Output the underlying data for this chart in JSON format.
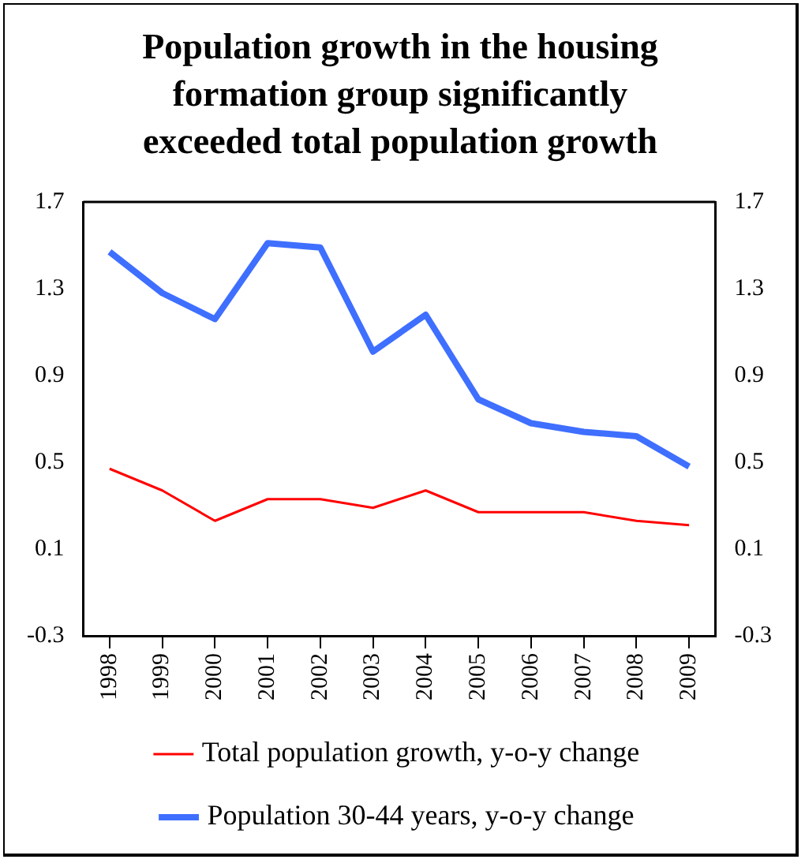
{
  "chart_data": {
    "type": "line",
    "title": "Population growth in the housing formation group significantly exceeded total population growth",
    "categories": [
      "1998",
      "1999",
      "2000",
      "2001",
      "2002",
      "2003",
      "2004",
      "2005",
      "2006",
      "2007",
      "2008",
      "2009"
    ],
    "series": [
      {
        "name": "Total population growth, y-o-y change",
        "color": "#ff0000",
        "values": [
          0.47,
          0.37,
          0.23,
          0.33,
          0.33,
          0.29,
          0.37,
          0.27,
          0.27,
          0.27,
          0.23,
          0.21
        ]
      },
      {
        "name": "Population 30-44 years, y-o-y change",
        "color": "#3f6fff",
        "values": [
          1.47,
          1.28,
          1.16,
          1.51,
          1.49,
          1.01,
          1.18,
          0.79,
          0.68,
          0.64,
          0.62,
          0.48
        ]
      }
    ],
    "ylim": [
      -0.3,
      1.7
    ],
    "yticks": [
      -0.3,
      0.1,
      0.5,
      0.9,
      1.3,
      1.7
    ],
    "y2lim": [
      -0.3,
      1.7
    ],
    "y2ticks": [
      -0.3,
      0.1,
      0.5,
      0.9,
      1.3,
      1.7
    ],
    "grid": false,
    "legend": "bottom",
    "marker": "none",
    "line_style": "solid"
  }
}
